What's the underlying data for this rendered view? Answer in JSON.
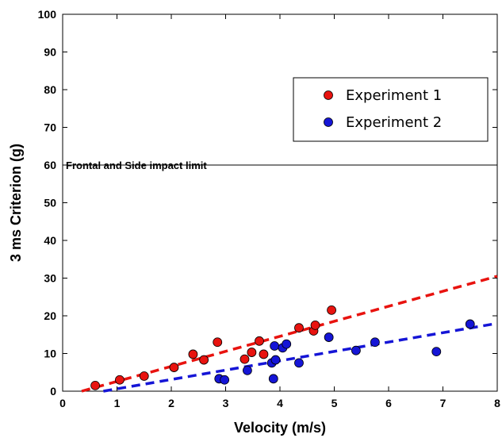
{
  "chart_data": {
    "type": "scatter",
    "xlabel": "Velocity (m/s)",
    "ylabel": "3 ms Criterion (g)",
    "xlim": [
      0,
      8
    ],
    "ylim": [
      0,
      100
    ],
    "xticks": [
      0,
      1,
      2,
      3,
      4,
      5,
      6,
      7,
      8
    ],
    "yticks": [
      0,
      10,
      20,
      30,
      40,
      50,
      60,
      70,
      80,
      90,
      100
    ],
    "grid": false,
    "legend_position": "upper-right",
    "reference_line": {
      "y": 60,
      "label": "Frontal  and  Side impact limit",
      "color": "#000000"
    },
    "series": [
      {
        "name": "Experiment 1",
        "color": "#e8130f",
        "points": [
          [
            0.6,
            1.5
          ],
          [
            1.05,
            3.0
          ],
          [
            1.5,
            4.0
          ],
          [
            2.05,
            6.3
          ],
          [
            2.4,
            9.8
          ],
          [
            2.6,
            8.3
          ],
          [
            2.85,
            13.0
          ],
          [
            3.35,
            8.5
          ],
          [
            3.48,
            10.3
          ],
          [
            3.62,
            13.3
          ],
          [
            3.7,
            9.8
          ],
          [
            4.35,
            16.8
          ],
          [
            4.62,
            16.0
          ],
          [
            4.65,
            17.5
          ],
          [
            4.95,
            21.5
          ]
        ],
        "trend": {
          "x": [
            0.35,
            8.0
          ],
          "y": [
            0.0,
            30.5
          ]
        }
      },
      {
        "name": "Experiment 2",
        "color": "#1515d6",
        "points": [
          [
            2.88,
            3.3
          ],
          [
            2.98,
            3.0
          ],
          [
            3.4,
            5.5
          ],
          [
            3.85,
            7.5
          ],
          [
            3.88,
            3.3
          ],
          [
            3.9,
            12.0
          ],
          [
            3.92,
            8.3
          ],
          [
            4.05,
            11.5
          ],
          [
            4.12,
            12.5
          ],
          [
            4.35,
            7.5
          ],
          [
            4.9,
            14.3
          ],
          [
            5.4,
            10.8
          ],
          [
            5.75,
            13.0
          ],
          [
            6.88,
            10.5
          ],
          [
            7.5,
            17.8
          ]
        ],
        "trend": {
          "x": [
            0.75,
            8.0
          ],
          "y": [
            0.0,
            18.0
          ]
        }
      }
    ]
  }
}
